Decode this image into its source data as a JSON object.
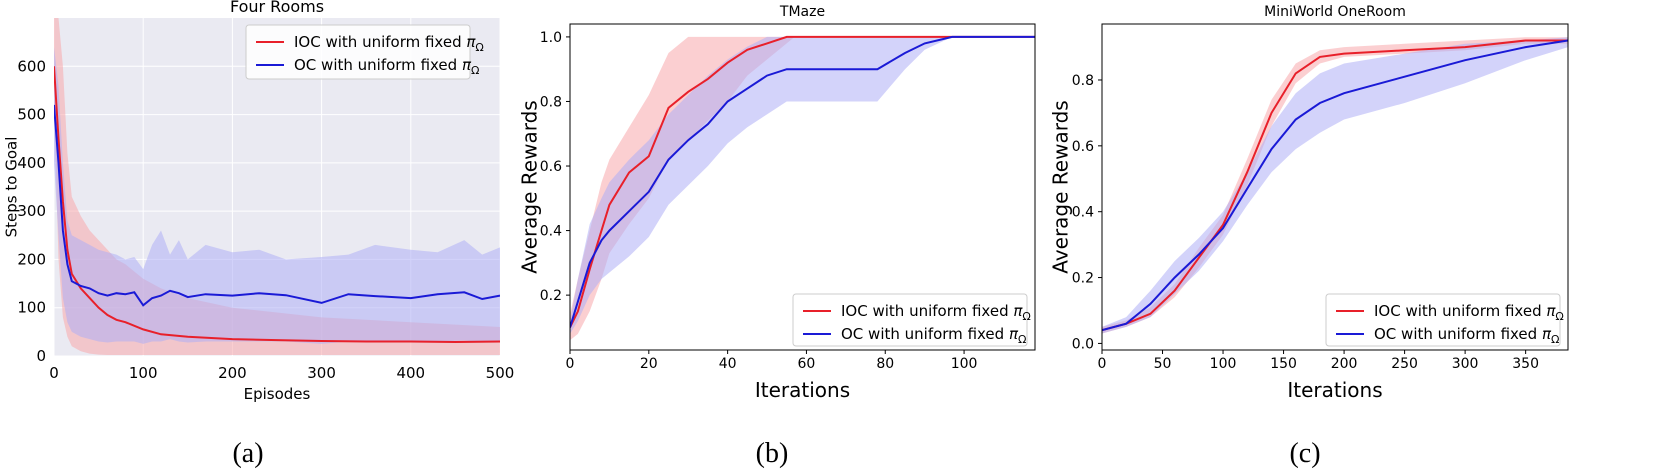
{
  "figure": {
    "captions": [
      "(a)",
      "(b)",
      "(c)"
    ],
    "colors": {
      "ioc": "#e8202a",
      "oc": "#1a1ad6",
      "ioc_band": "#f7a8ab",
      "oc_band": "#aeaef5",
      "panel_a_bg": "#eaeaf2"
    }
  },
  "chart_data": [
    {
      "type": "line",
      "title": "Four Rooms",
      "xlabel": "Episodes",
      "ylabel": "Steps to Goal",
      "xlim": [
        0,
        500
      ],
      "ylim": [
        0,
        700
      ],
      "xticks": [
        0,
        100,
        200,
        300,
        400,
        500
      ],
      "yticks": [
        0,
        100,
        200,
        300,
        400,
        500,
        600
      ],
      "grid": true,
      "legend_position": "top-right",
      "legend_prefixes": [
        "IOC with uniform fixed ",
        "OC with uniform fixed "
      ],
      "legend_symbol": "π",
      "legend_subscript": "Ω",
      "series": [
        {
          "name": "IOC with uniform fixed πΩ",
          "x": [
            0,
            5,
            10,
            15,
            20,
            30,
            40,
            50,
            60,
            70,
            80,
            100,
            120,
            150,
            200,
            250,
            300,
            350,
            400,
            450,
            500
          ],
          "values": [
            600,
            450,
            320,
            220,
            170,
            140,
            120,
            100,
            85,
            75,
            70,
            55,
            45,
            40,
            35,
            33,
            31,
            30,
            30,
            29,
            30
          ],
          "lower": [
            520,
            200,
            80,
            40,
            20,
            10,
            5,
            3,
            2,
            2,
            2,
            2,
            2,
            2,
            2,
            2,
            2,
            2,
            2,
            2,
            2
          ],
          "upper": [
            700,
            700,
            600,
            420,
            330,
            290,
            260,
            240,
            220,
            200,
            190,
            160,
            140,
            120,
            100,
            90,
            80,
            75,
            70,
            65,
            60
          ]
        },
        {
          "name": "OC with uniform fixed πΩ",
          "x": [
            0,
            5,
            10,
            15,
            20,
            30,
            40,
            50,
            60,
            70,
            80,
            90,
            100,
            110,
            120,
            130,
            140,
            150,
            170,
            200,
            230,
            260,
            300,
            330,
            360,
            400,
            430,
            460,
            480,
            500
          ],
          "values": [
            520,
            400,
            260,
            190,
            155,
            145,
            140,
            130,
            125,
            130,
            128,
            132,
            105,
            120,
            125,
            135,
            130,
            122,
            128,
            125,
            130,
            126,
            110,
            128,
            124,
            120,
            128,
            132,
            118,
            125
          ],
          "lower": [
            400,
            250,
            120,
            70,
            50,
            40,
            35,
            30,
            28,
            30,
            30,
            30,
            25,
            30,
            30,
            35,
            30,
            28,
            30,
            30,
            30,
            30,
            25,
            30,
            30,
            28,
            30,
            32,
            28,
            30
          ],
          "upper": [
            640,
            560,
            400,
            280,
            250,
            240,
            230,
            220,
            215,
            210,
            200,
            205,
            180,
            230,
            260,
            210,
            240,
            200,
            230,
            215,
            220,
            200,
            205,
            210,
            230,
            220,
            215,
            240,
            210,
            225
          ]
        }
      ]
    },
    {
      "type": "line",
      "title": "TMaze",
      "xlabel": "Iterations",
      "ylabel": "Average Rewards",
      "xlim": [
        0,
        118
      ],
      "ylim": [
        0.03,
        1.04
      ],
      "xticks": [
        0,
        20,
        40,
        60,
        80,
        100
      ],
      "yticks": [
        0.2,
        0.4,
        0.6,
        0.8,
        1.0
      ],
      "ytick_labels": [
        "0.2",
        "0.4",
        "0.6",
        "0.8",
        "1.0"
      ],
      "grid": false,
      "legend_position": "bottom-right",
      "legend_prefixes": [
        "IOC with uniform fixed ",
        "OC with uniform fixed "
      ],
      "legend_symbol": "π",
      "legend_subscript": "Ω",
      "series": [
        {
          "name": "IOC with uniform fixed πΩ",
          "x": [
            0,
            2,
            5,
            8,
            10,
            15,
            20,
            25,
            30,
            35,
            40,
            45,
            50,
            55,
            57,
            60,
            80,
            100,
            118
          ],
          "values": [
            0.1,
            0.15,
            0.28,
            0.4,
            0.48,
            0.58,
            0.63,
            0.78,
            0.83,
            0.87,
            0.92,
            0.96,
            0.98,
            1.0,
            1.0,
            1.0,
            1.0,
            1.0,
            1.0
          ],
          "lower": [
            0.06,
            0.08,
            0.15,
            0.25,
            0.33,
            0.42,
            0.5,
            0.62,
            0.68,
            0.74,
            0.8,
            0.88,
            0.93,
            0.98,
            1.0,
            1.0,
            1.0,
            1.0,
            1.0
          ],
          "upper": [
            0.14,
            0.25,
            0.4,
            0.55,
            0.62,
            0.72,
            0.82,
            0.95,
            1.0,
            1.0,
            1.0,
            1.0,
            1.0,
            1.0,
            1.0,
            1.0,
            1.0,
            1.0,
            1.0
          ]
        },
        {
          "name": "OC with uniform fixed πΩ",
          "x": [
            0,
            2,
            5,
            8,
            10,
            15,
            20,
            25,
            30,
            35,
            40,
            45,
            50,
            55,
            60,
            65,
            70,
            78,
            85,
            90,
            97,
            100,
            118
          ],
          "values": [
            0.1,
            0.18,
            0.3,
            0.37,
            0.4,
            0.46,
            0.52,
            0.62,
            0.68,
            0.73,
            0.8,
            0.84,
            0.88,
            0.9,
            0.9,
            0.9,
            0.9,
            0.9,
            0.95,
            0.98,
            1.0,
            1.0,
            1.0
          ],
          "lower": [
            0.08,
            0.12,
            0.2,
            0.25,
            0.27,
            0.32,
            0.38,
            0.48,
            0.54,
            0.6,
            0.67,
            0.72,
            0.76,
            0.8,
            0.8,
            0.8,
            0.8,
            0.8,
            0.9,
            0.96,
            1.0,
            1.0,
            1.0
          ],
          "upper": [
            0.12,
            0.25,
            0.42,
            0.5,
            0.55,
            0.62,
            0.68,
            0.76,
            0.82,
            0.88,
            0.93,
            0.97,
            1.0,
            1.0,
            1.0,
            1.0,
            1.0,
            1.0,
            1.0,
            1.0,
            1.0,
            1.0,
            1.0
          ]
        }
      ]
    },
    {
      "type": "line",
      "title": "MiniWorld OneRoom",
      "xlabel": "Iterations",
      "ylabel": "Average Rewards",
      "xlim": [
        0,
        385
      ],
      "ylim": [
        -0.02,
        0.97
      ],
      "xticks": [
        0,
        50,
        100,
        150,
        200,
        250,
        300,
        350
      ],
      "yticks": [
        0.0,
        0.2,
        0.4,
        0.6,
        0.8
      ],
      "ytick_labels": [
        "0.0",
        "0.2",
        "0.4",
        "0.6",
        "0.8"
      ],
      "grid": false,
      "legend_position": "bottom-right",
      "legend_prefixes": [
        "IOC with uniform fixed ",
        "OC with uniform fixed "
      ],
      "legend_symbol": "π",
      "legend_subscript": "Ω",
      "series": [
        {
          "name": "IOC with uniform fixed πΩ",
          "x": [
            0,
            20,
            40,
            60,
            80,
            100,
            120,
            140,
            160,
            180,
            200,
            250,
            300,
            350,
            385
          ],
          "values": [
            0.04,
            0.06,
            0.09,
            0.16,
            0.26,
            0.36,
            0.52,
            0.7,
            0.82,
            0.87,
            0.88,
            0.89,
            0.9,
            0.92,
            0.92
          ],
          "lower": [
            0.03,
            0.05,
            0.08,
            0.14,
            0.23,
            0.33,
            0.48,
            0.66,
            0.79,
            0.85,
            0.87,
            0.88,
            0.89,
            0.91,
            0.91
          ],
          "upper": [
            0.05,
            0.07,
            0.11,
            0.18,
            0.29,
            0.39,
            0.56,
            0.74,
            0.85,
            0.89,
            0.9,
            0.91,
            0.92,
            0.93,
            0.93
          ]
        },
        {
          "name": "OC with uniform fixed πΩ",
          "x": [
            0,
            20,
            40,
            60,
            80,
            100,
            120,
            140,
            160,
            180,
            200,
            250,
            300,
            350,
            385
          ],
          "values": [
            0.04,
            0.06,
            0.12,
            0.2,
            0.27,
            0.35,
            0.47,
            0.59,
            0.68,
            0.73,
            0.76,
            0.81,
            0.86,
            0.9,
            0.92
          ],
          "lower": [
            0.03,
            0.05,
            0.08,
            0.15,
            0.22,
            0.31,
            0.42,
            0.52,
            0.59,
            0.64,
            0.68,
            0.73,
            0.79,
            0.86,
            0.9
          ],
          "upper": [
            0.05,
            0.08,
            0.16,
            0.25,
            0.32,
            0.4,
            0.52,
            0.66,
            0.76,
            0.82,
            0.85,
            0.88,
            0.91,
            0.92,
            0.93
          ]
        }
      ]
    }
  ]
}
